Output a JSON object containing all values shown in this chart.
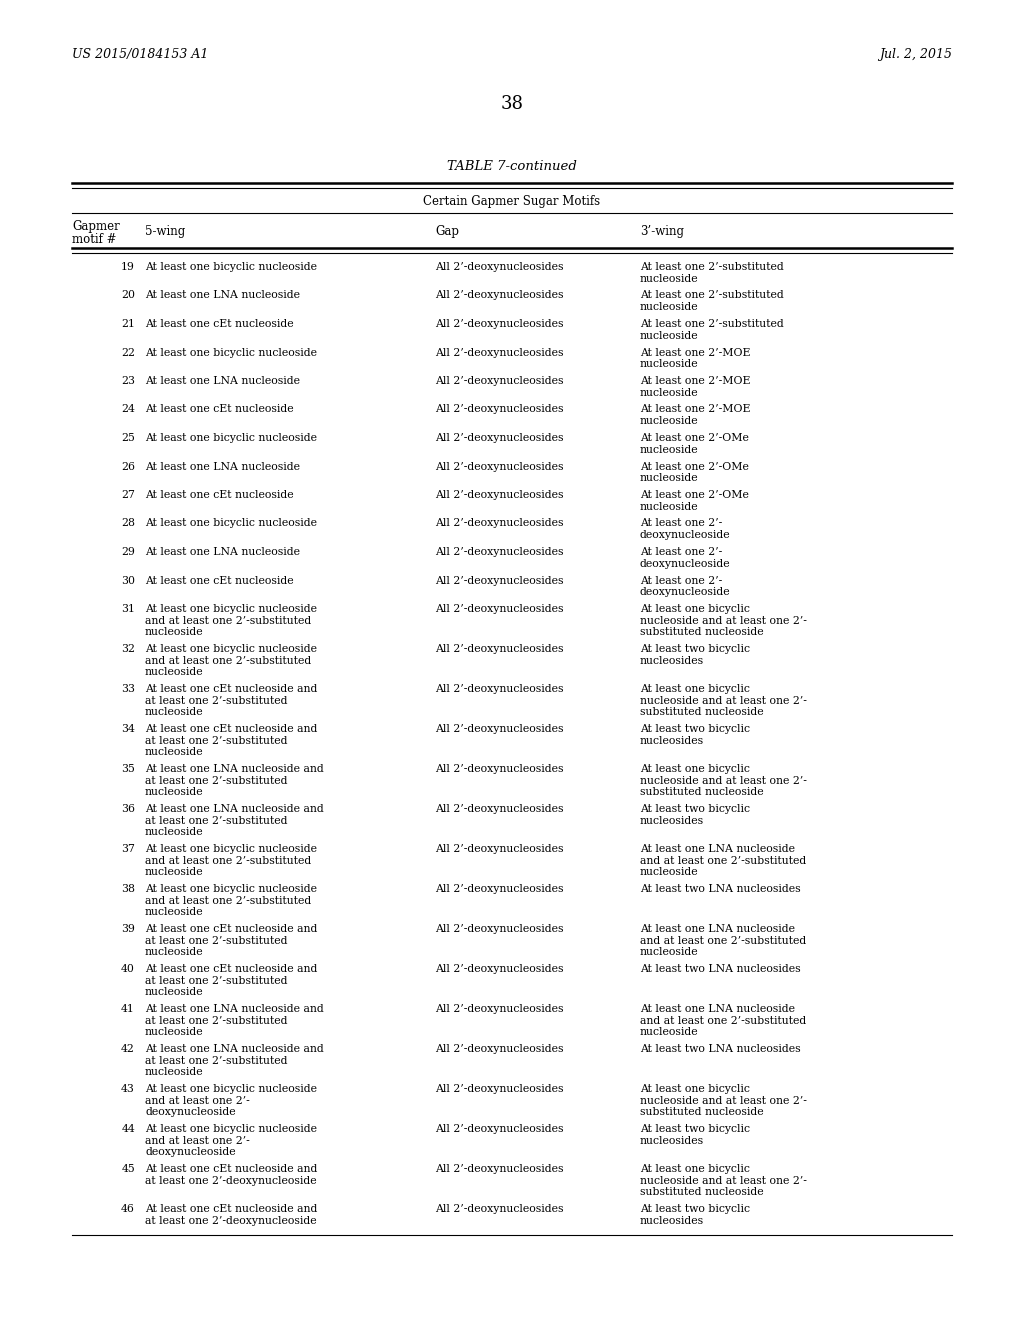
{
  "header_left": "US 2015/0184153 A1",
  "header_right": "Jul. 2, 2015",
  "page_number": "38",
  "table_title": "TABLE 7-continued",
  "table_subtitle": "Certain Gapmer Sugar Motifs",
  "rows": [
    [
      "19",
      "At least one bicyclic nucleoside",
      "All 2’-deoxynucleosides",
      "At least one 2’-substituted\nnucleoside"
    ],
    [
      "20",
      "At least one LNA nucleoside",
      "All 2’-deoxynucleosides",
      "At least one 2’-substituted\nnucleoside"
    ],
    [
      "21",
      "At least one cEt nucleoside",
      "All 2’-deoxynucleosides",
      "At least one 2’-substituted\nnucleoside"
    ],
    [
      "22",
      "At least one bicyclic nucleoside",
      "All 2’-deoxynucleosides",
      "At least one 2’-MOE\nnucleoside"
    ],
    [
      "23",
      "At least one LNA nucleoside",
      "All 2’-deoxynucleosides",
      "At least one 2’-MOE\nnucleoside"
    ],
    [
      "24",
      "At least one cEt nucleoside",
      "All 2’-deoxynucleosides",
      "At least one 2’-MOE\nnucleoside"
    ],
    [
      "25",
      "At least one bicyclic nucleoside",
      "All 2’-deoxynucleosides",
      "At least one 2’-OMe\nnucleoside"
    ],
    [
      "26",
      "At least one LNA nucleoside",
      "All 2’-deoxynucleosides",
      "At least one 2’-OMe\nnucleoside"
    ],
    [
      "27",
      "At least one cEt nucleoside",
      "All 2’-deoxynucleosides",
      "At least one 2’-OMe\nnucleoside"
    ],
    [
      "28",
      "At least one bicyclic nucleoside",
      "All 2’-deoxynucleosides",
      "At least one 2’-\ndeoxynucleoside"
    ],
    [
      "29",
      "At least one LNA nucleoside",
      "All 2’-deoxynucleosides",
      "At least one 2’-\ndeoxynucleoside"
    ],
    [
      "30",
      "At least one cEt nucleoside",
      "All 2’-deoxynucleosides",
      "At least one 2’-\ndeoxynucleoside"
    ],
    [
      "31",
      "At least one bicyclic nucleoside\nand at least one 2’-substituted\nnucleoside",
      "All 2’-deoxynucleosides",
      "At least one bicyclic\nnucleoside and at least one 2’-\nsubstituted nucleoside"
    ],
    [
      "32",
      "At least one bicyclic nucleoside\nand at least one 2’-substituted\nnucleoside",
      "All 2’-deoxynucleosides",
      "At least two bicyclic\nnucleosides"
    ],
    [
      "33",
      "At least one cEt nucleoside and\nat least one 2’-substituted\nnucleoside",
      "All 2’-deoxynucleosides",
      "At least one bicyclic\nnucleoside and at least one 2’-\nsubstituted nucleoside"
    ],
    [
      "34",
      "At least one cEt nucleoside and\nat least one 2’-substituted\nnucleoside",
      "All 2’-deoxynucleosides",
      "At least two bicyclic\nnucleosides"
    ],
    [
      "35",
      "At least one LNA nucleoside and\nat least one 2’-substituted\nnucleoside",
      "All 2’-deoxynucleosides",
      "At least one bicyclic\nnucleoside and at least one 2’-\nsubstituted nucleoside"
    ],
    [
      "36",
      "At least one LNA nucleoside and\nat least one 2’-substituted\nnucleoside",
      "All 2’-deoxynucleosides",
      "At least two bicyclic\nnucleosides"
    ],
    [
      "37",
      "At least one bicyclic nucleoside\nand at least one 2’-substituted\nnucleoside",
      "All 2’-deoxynucleosides",
      "At least one LNA nucleoside\nand at least one 2’-substituted\nnucleoside"
    ],
    [
      "38",
      "At least one bicyclic nucleoside\nand at least one 2’-substituted\nnucleoside",
      "All 2’-deoxynucleosides",
      "At least two LNA nucleosides"
    ],
    [
      "39",
      "At least one cEt nucleoside and\nat least one 2’-substituted\nnucleoside",
      "All 2’-deoxynucleosides",
      "At least one LNA nucleoside\nand at least one 2’-substituted\nnucleoside"
    ],
    [
      "40",
      "At least one cEt nucleoside and\nat least one 2’-substituted\nnucleoside",
      "All 2’-deoxynucleosides",
      "At least two LNA nucleosides"
    ],
    [
      "41",
      "At least one LNA nucleoside and\nat least one 2’-substituted\nnucleoside",
      "All 2’-deoxynucleosides",
      "At least one LNA nucleoside\nand at least one 2’-substituted\nnucleoside"
    ],
    [
      "42",
      "At least one LNA nucleoside and\nat least one 2’-substituted\nnucleoside",
      "All 2’-deoxynucleosides",
      "At least two LNA nucleosides"
    ],
    [
      "43",
      "At least one bicyclic nucleoside\nand at least one 2’-\ndeoxynucleoside",
      "All 2’-deoxynucleosides",
      "At least one bicyclic\nnucleoside and at least one 2’-\nsubstituted nucleoside"
    ],
    [
      "44",
      "At least one bicyclic nucleoside\nand at least one 2’-\ndeoxynucleoside",
      "All 2’-deoxynucleosides",
      "At least two bicyclic\nnucleosides"
    ],
    [
      "45",
      "At least one cEt nucleoside and\nat least one 2’-deoxynucleoside",
      "All 2’-deoxynucleosides",
      "At least one bicyclic\nnucleoside and at least one 2’-\nsubstituted nucleoside"
    ],
    [
      "46",
      "At least one cEt nucleoside and\nat least one 2’-deoxynucleoside",
      "All 2’-deoxynucleosides",
      "At least two bicyclic\nnucleosides"
    ]
  ],
  "bg_color": "#ffffff",
  "text_color": "#000000"
}
